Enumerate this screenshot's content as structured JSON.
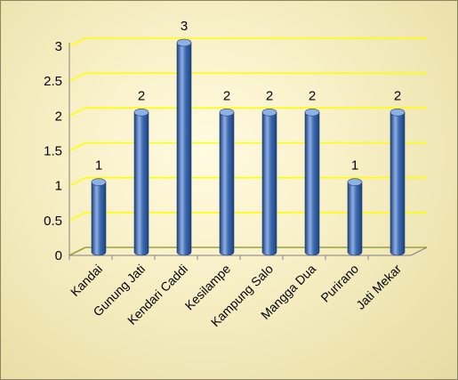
{
  "chart_data": {
    "type": "bar",
    "categories": [
      "Kandai",
      "Gunung Jati",
      "Kendari Caddi",
      "Kesilampe",
      "Kampung Salo",
      "Mangga Dua",
      "Purirano",
      "Jati Mekar"
    ],
    "values": [
      1,
      2,
      3,
      2,
      2,
      2,
      1,
      2
    ],
    "data_labels": [
      "1",
      "2",
      "3",
      "2",
      "2",
      "2",
      "1",
      "2"
    ],
    "y_ticks": [
      "0",
      "0.5",
      "1",
      "1.5",
      "2",
      "2.5",
      "3"
    ],
    "y_tick_values": [
      0,
      0.5,
      1,
      1.5,
      2,
      2.5,
      3
    ],
    "ylim": [
      0,
      3
    ],
    "title": "",
    "xlabel": "",
    "ylabel": "",
    "grid": true,
    "legend": "none",
    "style": "3d-cylinder",
    "colors": {
      "bar": "#3d6db4",
      "bar_dark": "#1f3f7a",
      "bar_light": "#8fb0e3",
      "gridline": "#ffff00",
      "floor": "#9aa43c",
      "background": "#f6eec3"
    }
  }
}
